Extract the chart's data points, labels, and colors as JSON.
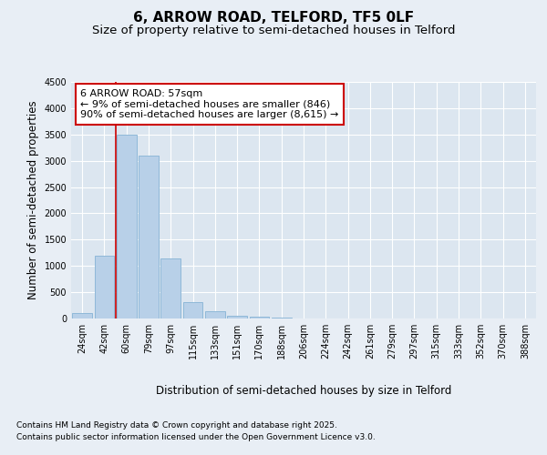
{
  "title": "6, ARROW ROAD, TELFORD, TF5 0LF",
  "subtitle": "Size of property relative to semi-detached houses in Telford",
  "xlabel": "Distribution of semi-detached houses by size in Telford",
  "ylabel": "Number of semi-detached properties",
  "categories": [
    "24sqm",
    "42sqm",
    "60sqm",
    "79sqm",
    "97sqm",
    "115sqm",
    "133sqm",
    "151sqm",
    "170sqm",
    "188sqm",
    "206sqm",
    "224sqm",
    "242sqm",
    "261sqm",
    "279sqm",
    "297sqm",
    "315sqm",
    "333sqm",
    "352sqm",
    "370sqm",
    "388sqm"
  ],
  "values": [
    100,
    1200,
    3500,
    3100,
    1150,
    320,
    130,
    60,
    30,
    10,
    5,
    2,
    1,
    0,
    0,
    0,
    0,
    0,
    0,
    0,
    0
  ],
  "bar_color": "#b8d0e8",
  "bar_edge_color": "#8fb8d8",
  "vline_x": 1.5,
  "vline_color": "#cc0000",
  "annotation_text": "6 ARROW ROAD: 57sqm\n← 9% of semi-detached houses are smaller (846)\n90% of semi-detached houses are larger (8,615) →",
  "annotation_box_color": "#ffffff",
  "annotation_box_edge": "#cc0000",
  "ylim": [
    0,
    4500
  ],
  "yticks": [
    0,
    500,
    1000,
    1500,
    2000,
    2500,
    3000,
    3500,
    4000,
    4500
  ],
  "background_color": "#e8eef5",
  "plot_bg_color": "#dce6f0",
  "footer_line1": "Contains HM Land Registry data © Crown copyright and database right 2025.",
  "footer_line2": "Contains public sector information licensed under the Open Government Licence v3.0.",
  "title_fontsize": 11,
  "subtitle_fontsize": 9.5,
  "axis_label_fontsize": 8.5,
  "tick_fontsize": 7,
  "annotation_fontsize": 8,
  "footer_fontsize": 6.5
}
